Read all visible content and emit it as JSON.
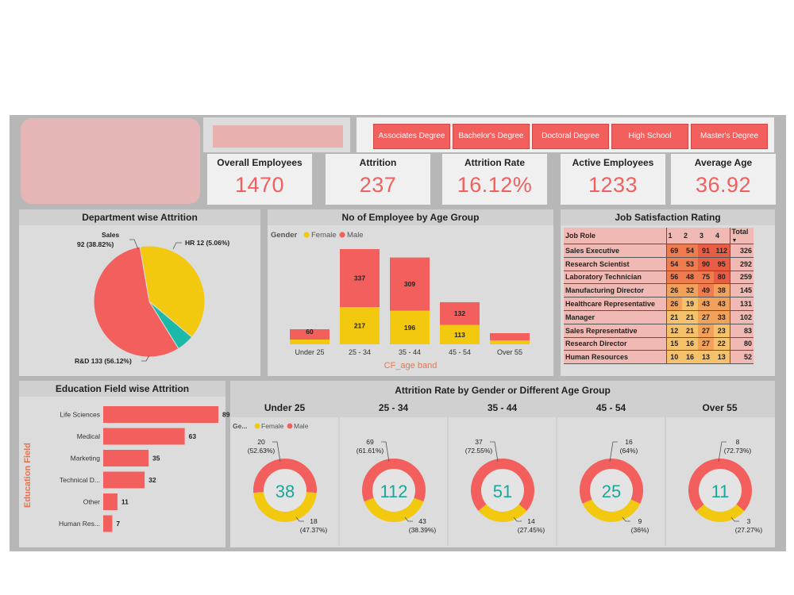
{
  "slicer": {
    "buttons": [
      "Associates Degree",
      "Bachelor's Degree",
      "Doctoral Degree",
      "High School",
      "Master's Degree"
    ]
  },
  "kpis": [
    {
      "label": "Overall Employees",
      "value": "1470"
    },
    {
      "label": "Attrition",
      "value": "237"
    },
    {
      "label": "Attrition Rate",
      "value": "16.12%"
    },
    {
      "label": "Active Employees",
      "value": "1233"
    },
    {
      "label": "Average Age",
      "value": "36.92"
    }
  ],
  "colors": {
    "accent": "#f25f5c",
    "female": "#f2c90f",
    "male": "#f25f5c",
    "hr": "#1cb9a8",
    "teal_text": "#1aa79b",
    "axis_label": "#e8744f"
  },
  "department": {
    "title": "Department wise Attrition",
    "labels": [
      "Sales",
      "92 (38.82%)",
      "HR 12 (5.06%)",
      "R&D 133 (56.12%)"
    ]
  },
  "age_group": {
    "title": "No of Employee by Age Group",
    "legend_title": "Gender",
    "legend": [
      "Female",
      "Male"
    ],
    "xlabel": "CF_age band"
  },
  "job_satisfaction": {
    "title": "Job Satisfaction Rating",
    "headers": [
      "Job Role",
      "1",
      "2",
      "3",
      "4",
      "Total"
    ],
    "rows": [
      {
        "role": "Sales Executive",
        "v": [
          "69",
          "54",
          "91",
          "112"
        ],
        "total": "326"
      },
      {
        "role": "Research Scientist",
        "v": [
          "54",
          "53",
          "90",
          "95"
        ],
        "total": "292"
      },
      {
        "role": "Laboratory Technician",
        "v": [
          "56",
          "48",
          "75",
          "80"
        ],
        "total": "259"
      },
      {
        "role": "Manufacturing Director",
        "v": [
          "26",
          "32",
          "49",
          "38"
        ],
        "total": "145"
      },
      {
        "role": "Healthcare Representative",
        "v": [
          "26",
          "19",
          "43",
          "43"
        ],
        "total": "131"
      },
      {
        "role": "Manager",
        "v": [
          "21",
          "21",
          "27",
          "33"
        ],
        "total": "102"
      },
      {
        "role": "Sales Representative",
        "v": [
          "12",
          "21",
          "27",
          "23"
        ],
        "total": "83"
      },
      {
        "role": "Research Director",
        "v": [
          "15",
          "16",
          "27",
          "22"
        ],
        "total": "80"
      },
      {
        "role": "Human Resources",
        "v": [
          "10",
          "16",
          "13",
          "13"
        ],
        "total": "52"
      }
    ]
  },
  "education": {
    "title": "Education Field wise Attrition",
    "axis_label": "Education Field"
  },
  "rate_by_age": {
    "title": "Attrition Rate by Gender or Different Age Group",
    "legend_title": "Ge...",
    "legend": [
      "Female",
      "Male"
    ],
    "groups": [
      {
        "head": "Under 25",
        "total": "38",
        "male_label": "20",
        "male_pct": "(52.63%)",
        "female_label": "18",
        "female_pct": "(47.37%)"
      },
      {
        "head": "25 - 34",
        "total": "112",
        "male_label": "69",
        "male_pct": "(61.61%)",
        "female_label": "43",
        "female_pct": "(38.39%)"
      },
      {
        "head": "35 - 44",
        "total": "51",
        "male_label": "37",
        "male_pct": "(72.55%)",
        "female_label": "14",
        "female_pct": "(27.45%)"
      },
      {
        "head": "45 - 54",
        "total": "25",
        "male_label": "16",
        "male_pct": "(64%)",
        "female_label": "9",
        "female_pct": "(36%)"
      },
      {
        "head": "Over 55",
        "total": "11",
        "male_label": "8",
        "male_pct": "(72.73%)",
        "female_label": "3",
        "female_pct": "(27.27%)"
      }
    ]
  },
  "chart_data": [
    {
      "type": "pie",
      "title": "Department wise Attrition",
      "categories": [
        "Sales",
        "HR",
        "R&D"
      ],
      "values": [
        92,
        12,
        133
      ]
    },
    {
      "type": "bar",
      "title": "No of Employee by Age Group",
      "stacked": true,
      "categories": [
        "Under 25",
        "25 - 34",
        "35 - 44",
        "45 - 54",
        "Over 55"
      ],
      "series": [
        {
          "name": "Female",
          "values": [
            null,
            217,
            196,
            113,
            null
          ]
        },
        {
          "name": "Male",
          "values": [
            60,
            337,
            309,
            132,
            null
          ]
        }
      ],
      "xlabel": "CF_age band",
      "ylabel": ""
    },
    {
      "type": "bar",
      "orientation": "horizontal",
      "title": "Education Field wise Attrition",
      "categories": [
        "Life Sciences",
        "Medical",
        "Marketing",
        "Technical D...",
        "Other",
        "Human Res..."
      ],
      "values": [
        89,
        63,
        35,
        32,
        11,
        7
      ],
      "ylabel": "Education Field"
    }
  ]
}
